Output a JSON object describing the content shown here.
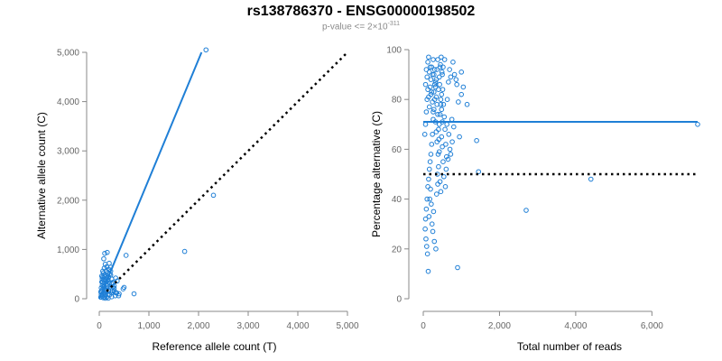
{
  "title": "rs138786370 - ENSG00000198502",
  "subtitle": {
    "prefix": "p-value <= 2×10",
    "exponent": "-311"
  },
  "colors": {
    "series": "#1f7fd6",
    "reference": "#000000",
    "axis": "#888888",
    "tick_text": "#666666"
  },
  "chart_data": [
    {
      "type": "scatter",
      "xlabel": "Reference allele count (T)",
      "ylabel": "Alternative allele count (C)",
      "xlim": [
        0,
        5000
      ],
      "ylim": [
        0,
        5000
      ],
      "xticks": [
        0,
        1000,
        2000,
        3000,
        4000,
        5000
      ],
      "yticks": [
        0,
        1000,
        2000,
        3000,
        4000,
        5000
      ],
      "xtick_labels": [
        "0",
        "1,000",
        "2,000",
        "3,000",
        "4,000",
        "5,000"
      ],
      "ytick_labels": [
        "0",
        "1,000",
        "2,000",
        "3,000",
        "4,000",
        "5,000"
      ],
      "fit_line": {
        "name": "fit",
        "style": "solid",
        "points": [
          [
            0,
            0
          ],
          [
            2060,
            5000
          ]
        ]
      },
      "reference_line": {
        "name": "reference (1:1)",
        "style": "dotted",
        "points": [
          [
            150,
            150
          ],
          [
            5000,
            5000
          ]
        ]
      },
      "points": [
        [
          2150,
          5050
        ],
        [
          2300,
          2100
        ],
        [
          1720,
          960
        ],
        [
          280,
          320
        ],
        [
          300,
          160
        ],
        [
          480,
          200
        ],
        [
          270,
          240
        ],
        [
          230,
          480
        ],
        [
          190,
          440
        ],
        [
          270,
          330
        ],
        [
          330,
          420
        ],
        [
          300,
          260
        ],
        [
          330,
          120
        ],
        [
          230,
          560
        ],
        [
          160,
          940
        ],
        [
          110,
          920
        ],
        [
          540,
          880
        ],
        [
          190,
          600
        ],
        [
          360,
          360
        ],
        [
          250,
          400
        ],
        [
          300,
          210
        ],
        [
          500,
          230
        ],
        [
          350,
          120
        ],
        [
          260,
          160
        ],
        [
          320,
          60
        ],
        [
          250,
          40
        ],
        [
          180,
          90
        ],
        [
          400,
          100
        ],
        [
          700,
          100
        ],
        [
          390,
          60
        ],
        [
          180,
          380
        ],
        [
          250,
          300
        ],
        [
          80,
          20
        ],
        [
          60,
          60
        ],
        [
          100,
          100
        ],
        [
          140,
          170
        ],
        [
          50,
          340
        ],
        [
          80,
          520
        ],
        [
          120,
          700
        ],
        [
          90,
          810
        ],
        [
          150,
          650
        ],
        [
          210,
          500
        ],
        [
          70,
          440
        ],
        [
          130,
          380
        ],
        [
          100,
          250
        ],
        [
          160,
          220
        ],
        [
          60,
          180
        ],
        [
          200,
          320
        ],
        [
          90,
          130
        ],
        [
          40,
          220
        ],
        [
          110,
          40
        ],
        [
          150,
          30
        ],
        [
          70,
          560
        ],
        [
          200,
          720
        ],
        [
          60,
          400
        ],
        [
          90,
          300
        ],
        [
          120,
          480
        ],
        [
          170,
          520
        ],
        [
          40,
          80
        ],
        [
          30,
          140
        ],
        [
          130,
          140
        ],
        [
          100,
          620
        ],
        [
          160,
          360
        ],
        [
          80,
          240
        ],
        [
          220,
          240
        ],
        [
          120,
          10
        ],
        [
          60,
          270
        ],
        [
          180,
          10
        ],
        [
          240,
          120
        ],
        [
          140,
          290
        ],
        [
          30,
          30
        ],
        [
          50,
          150
        ],
        [
          100,
          450
        ],
        [
          140,
          560
        ],
        [
          190,
          160
        ],
        [
          210,
          80
        ],
        [
          70,
          340
        ],
        [
          110,
          180
        ],
        [
          150,
          420
        ],
        [
          170,
          260
        ],
        [
          90,
          380
        ],
        [
          120,
          80
        ],
        [
          50,
          460
        ],
        [
          230,
          640
        ]
      ]
    },
    {
      "type": "scatter",
      "xlabel": "Total number of reads",
      "ylabel": "Percentage alternative (C)",
      "xlim": [
        0,
        7200
      ],
      "ylim": [
        0,
        100
      ],
      "xticks": [
        0,
        2000,
        4000,
        6000
      ],
      "yticks": [
        0,
        20,
        40,
        60,
        80,
        100
      ],
      "xtick_labels": [
        "0",
        "2,000",
        "4,000",
        "6,000"
      ],
      "ytick_labels": [
        "0",
        "20",
        "40",
        "60",
        "80",
        "100"
      ],
      "fit_line": {
        "name": "fit",
        "style": "solid",
        "points": [
          [
            0,
            71
          ],
          [
            7200,
            71
          ]
        ]
      },
      "reference_line": {
        "name": "reference (50%)",
        "style": "dotted",
        "points": [
          [
            0,
            50
          ],
          [
            7200,
            50
          ]
        ]
      },
      "points": [
        [
          7200,
          70
        ],
        [
          4400,
          48
        ],
        [
          2700,
          35.5
        ],
        [
          1400,
          63.5
        ],
        [
          1450,
          51
        ],
        [
          900,
          12.5
        ],
        [
          1150,
          78
        ],
        [
          1050,
          85
        ],
        [
          1000,
          91
        ],
        [
          1000,
          82
        ],
        [
          950,
          65
        ],
        [
          860,
          88
        ],
        [
          800,
          69
        ],
        [
          750,
          72
        ],
        [
          700,
          60
        ],
        [
          650,
          56
        ],
        [
          600,
          52
        ],
        [
          560,
          96
        ],
        [
          520,
          93
        ],
        [
          500,
          90
        ],
        [
          480,
          82
        ],
        [
          460,
          78
        ],
        [
          440,
          74
        ],
        [
          420,
          70
        ],
        [
          400,
          68
        ],
        [
          380,
          96
        ],
        [
          360,
          92
        ],
        [
          340,
          88
        ],
        [
          320,
          85
        ],
        [
          300,
          80
        ],
        [
          280,
          76
        ],
        [
          260,
          72
        ],
        [
          240,
          66
        ],
        [
          220,
          62
        ],
        [
          200,
          58
        ],
        [
          180,
          55
        ],
        [
          160,
          52
        ],
        [
          140,
          48
        ],
        [
          120,
          45
        ],
        [
          100,
          40
        ],
        [
          80,
          36
        ],
        [
          60,
          32
        ],
        [
          50,
          28
        ],
        [
          70,
          24
        ],
        [
          90,
          21
        ],
        [
          110,
          18
        ],
        [
          130,
          11
        ],
        [
          150,
          33
        ],
        [
          170,
          40
        ],
        [
          190,
          44
        ],
        [
          210,
          38
        ],
        [
          230,
          30
        ],
        [
          250,
          27
        ],
        [
          270,
          35
        ],
        [
          290,
          23
        ],
        [
          330,
          20
        ],
        [
          350,
          42
        ],
        [
          370,
          50
        ],
        [
          390,
          58
        ],
        [
          410,
          64
        ],
        [
          430,
          86
        ],
        [
          450,
          94
        ],
        [
          470,
          97
        ],
        [
          490,
          91
        ],
        [
          510,
          84
        ],
        [
          530,
          78
        ],
        [
          550,
          73
        ],
        [
          570,
          68
        ],
        [
          590,
          62
        ],
        [
          610,
          57
        ],
        [
          630,
          80
        ],
        [
          660,
          87
        ],
        [
          690,
          92
        ],
        [
          720,
          89
        ],
        [
          780,
          95
        ],
        [
          820,
          90
        ],
        [
          880,
          86
        ],
        [
          920,
          79
        ],
        [
          60,
          86
        ],
        [
          80,
          92
        ],
        [
          100,
          89
        ],
        [
          120,
          84
        ],
        [
          140,
          81
        ],
        [
          160,
          77
        ],
        [
          180,
          93
        ],
        [
          200,
          88
        ],
        [
          220,
          83
        ],
        [
          240,
          79
        ],
        [
          260,
          75
        ],
        [
          280,
          90
        ],
        [
          300,
          86
        ],
        [
          320,
          71
        ],
        [
          340,
          67
        ],
        [
          360,
          63
        ],
        [
          380,
          46
        ],
        [
          400,
          53
        ],
        [
          420,
          59
        ],
        [
          440,
          47
        ],
        [
          460,
          43
        ],
        [
          480,
          65
        ],
        [
          500,
          61
        ],
        [
          520,
          55
        ],
        [
          540,
          49
        ],
        [
          580,
          45
        ],
        [
          620,
          70
        ],
        [
          670,
          66
        ],
        [
          720,
          58
        ],
        [
          760,
          63
        ],
        [
          40,
          66
        ],
        [
          60,
          70
        ],
        [
          80,
          75
        ],
        [
          100,
          80
        ],
        [
          120,
          95
        ],
        [
          140,
          97
        ],
        [
          160,
          91
        ],
        [
          180,
          85
        ],
        [
          200,
          82
        ],
        [
          220,
          93
        ],
        [
          240,
          90
        ],
        [
          260,
          96
        ],
        [
          280,
          83
        ],
        [
          300,
          92
        ],
        [
          320,
          87
        ],
        [
          340,
          81
        ],
        [
          360,
          78
        ],
        [
          380,
          74
        ],
        [
          400,
          84
        ],
        [
          420,
          89
        ],
        [
          440,
          93
        ],
        [
          460,
          80
        ],
        [
          480,
          76
        ],
        [
          500,
          71
        ]
      ]
    }
  ]
}
